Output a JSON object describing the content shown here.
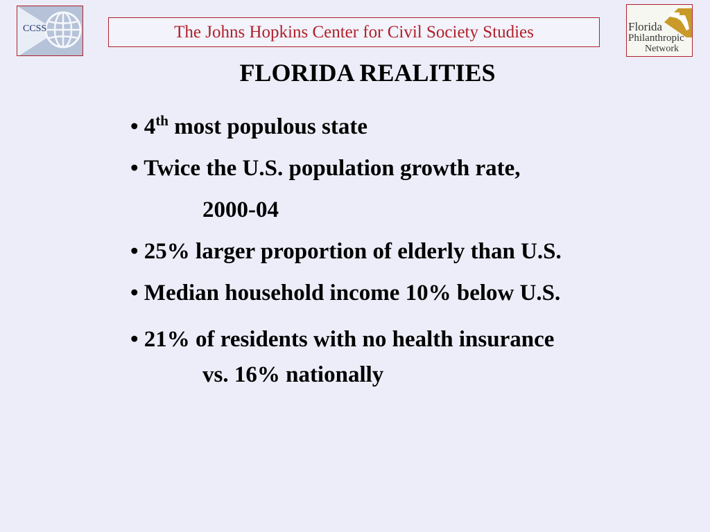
{
  "header": {
    "left_logo_label": "CCSS",
    "banner_text": "The Johns Hopkins Center for Civil Society Studies",
    "right_logo_line1": "Florida",
    "right_logo_line2": "Philanthropic",
    "right_logo_line3": "Network"
  },
  "slide": {
    "title": "FLORIDA REALITIES",
    "bullets": [
      {
        "prefix": "• 4",
        "sup": "th",
        "rest": " most populous state"
      },
      {
        "text": "• Twice the U.S. population growth rate,"
      },
      {
        "text": "2000-04"
      },
      {
        "text": "• 25% larger proportion of elderly than U.S."
      },
      {
        "text": "• Median household income 10% below U.S."
      },
      {
        "text": "• 21% of residents with no health insurance"
      },
      {
        "text": "vs. 16% nationally"
      }
    ]
  },
  "colors": {
    "background": "#ecedf8",
    "accent": "#b1202a",
    "left_logo_bg": "#b5c2d8",
    "right_logo_gold": "#c99a2a"
  },
  "icons": {
    "left_logo": "globe-icon",
    "right_logo": "florida-map-icon"
  }
}
